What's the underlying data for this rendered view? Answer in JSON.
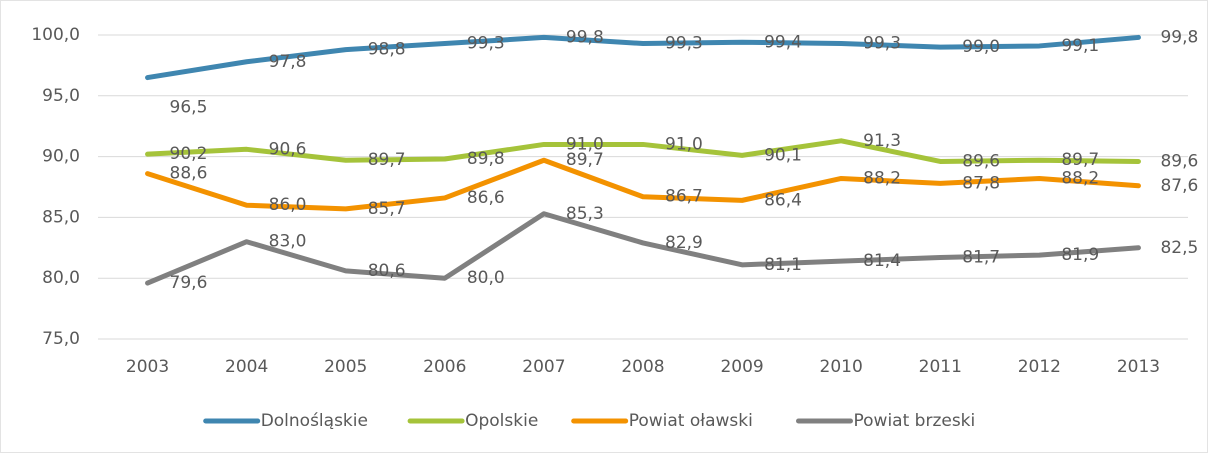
{
  "chart_data": {
    "type": "line",
    "categories": [
      "2003",
      "2004",
      "2005",
      "2006",
      "2007",
      "2008",
      "2009",
      "2010",
      "2011",
      "2012",
      "2013"
    ],
    "series": [
      {
        "name": "Dolnośląskie",
        "color": "#3f86b0",
        "values": [
          96.5,
          97.8,
          98.8,
          99.3,
          99.8,
          99.3,
          99.4,
          99.3,
          99.0,
          99.1,
          99.8
        ],
        "value_labels": [
          "96,5",
          "97,8",
          "98,8",
          "99,3",
          "99,8",
          "99,3",
          "99,4",
          "99,3",
          "99,0",
          "99,1",
          "99,8"
        ]
      },
      {
        "name": "Opolskie",
        "color": "#a5c33a",
        "values": [
          90.2,
          90.6,
          89.7,
          89.8,
          91.0,
          91.0,
          90.1,
          91.3,
          89.6,
          89.7,
          89.6
        ],
        "value_labels": [
          "90,2",
          "90,6",
          "89,7",
          "89,8",
          "91,0",
          "91,0",
          "90,1",
          "91,3",
          "89,6",
          "89,7",
          "89,6"
        ]
      },
      {
        "name": "Powiat oławski",
        "color": "#f39200",
        "values": [
          88.6,
          86.0,
          85.7,
          86.6,
          89.7,
          86.7,
          86.4,
          88.2,
          87.8,
          88.2,
          87.6
        ],
        "value_labels": [
          "88,6",
          "86,0",
          "85,7",
          "86,6",
          "89,7",
          "86,7",
          "86,4",
          "88,2",
          "87,8",
          "88,2",
          "87,6"
        ]
      },
      {
        "name": "Powiat brzeski",
        "color": "#808080",
        "values": [
          79.6,
          83.0,
          80.6,
          80.0,
          85.3,
          82.9,
          81.1,
          81.4,
          81.7,
          81.9,
          82.5
        ],
        "value_labels": [
          "79,6",
          "83,0",
          "80,6",
          "80,0",
          "85,3",
          "82,9",
          "81,1",
          "81,4",
          "81,7",
          "81,9",
          "82,5"
        ]
      }
    ],
    "ylim": [
      75,
      100
    ],
    "yticks": [
      {
        "value": 75,
        "label": "75,0"
      },
      {
        "value": 80,
        "label": "80,0"
      },
      {
        "value": 85,
        "label": "85,0"
      },
      {
        "value": 90,
        "label": "90,0"
      },
      {
        "value": 95,
        "label": "95,0"
      },
      {
        "value": 100,
        "label": "100,0"
      }
    ],
    "grid": true,
    "legend": "bottom"
  }
}
